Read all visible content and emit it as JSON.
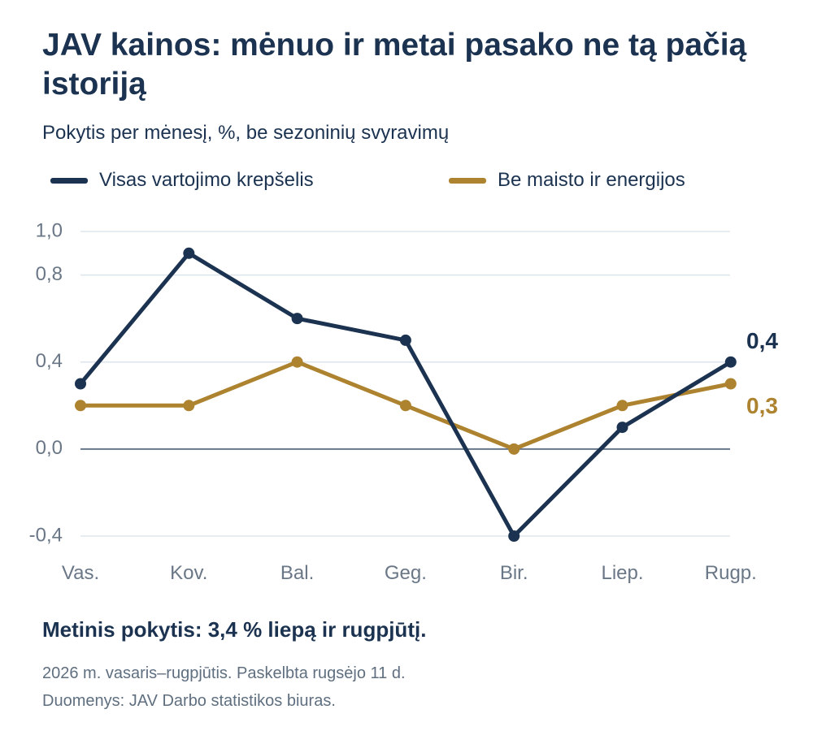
{
  "title": "JAV kainos: mėnuo ir metai pasako ne tą pačią istoriją",
  "subtitle": "Pokytis per mėnesį, %, be sezoninių svyravimų",
  "headline": "Metinis pokytis: 3,4 % liepą ir rugpjūtį.",
  "notes": {
    "period": "2026 m. vasaris–rugpjūtis. Paskelbta rugsėjo 11 d.",
    "source": "Duomenys: JAV Darbo statistikos biuras."
  },
  "colors": {
    "headline_series": "#1b3350",
    "core_series": "#ad832f",
    "grid": "#dde5ec",
    "zero_line": "#66768a",
    "axis_text": "#6a7787"
  },
  "chart_data": {
    "type": "line",
    "categories": [
      "Vas.",
      "Kov.",
      "Bal.",
      "Geg.",
      "Bir.",
      "Liep.",
      "Rugp."
    ],
    "y_ticks": [
      1.0,
      0.8,
      0.4,
      0.0,
      -0.4
    ],
    "y_tick_labels": [
      "1,0",
      "0,8",
      "0,4",
      "0,0",
      "-0,4"
    ],
    "ylim": [
      -0.4,
      1.0
    ],
    "grid": true,
    "legend_position": "top",
    "series": [
      {
        "name": "Visas vartojimo krepšelis",
        "values": [
          0.3,
          0.9,
          0.6,
          0.5,
          -0.4,
          0.1,
          0.4
        ],
        "end_label": "0,4",
        "color": "#1b3350"
      },
      {
        "name": "Be maisto ir energijos",
        "values": [
          0.2,
          0.2,
          0.4,
          0.2,
          0.0,
          0.2,
          0.3
        ],
        "end_label": "0,3",
        "color": "#ad832f"
      }
    ]
  }
}
